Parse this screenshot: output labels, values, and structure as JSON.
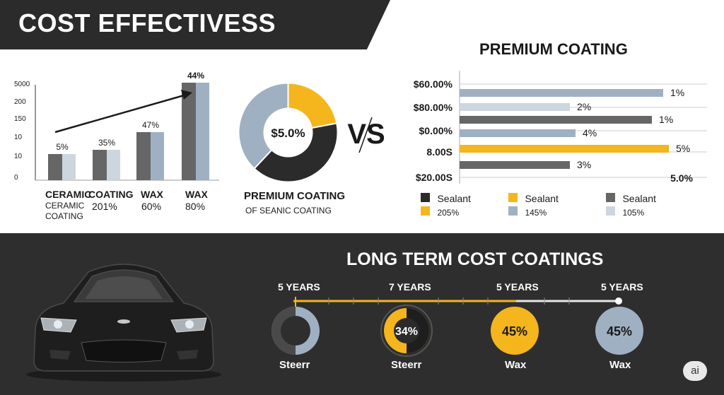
{
  "title": "COST EFFECTIVESS",
  "colors": {
    "dark": "#2b2b2b",
    "gold": "#f5b51c",
    "bluegrey": "#9fb0c3",
    "grey": "#666666",
    "light": "#cdd6df"
  },
  "left_chart": {
    "y_ticks": [
      "5000",
      "200",
      "150",
      "10",
      "10",
      "0"
    ],
    "bar_pct_labels": [
      "5%",
      "35%",
      "47%",
      "44%"
    ],
    "category_labels": [
      "CERAMIC",
      "COATING",
      "WAX",
      "WAX"
    ],
    "sub_labels": [
      [
        "CERAMIC",
        "COATING"
      ],
      [
        "201%"
      ],
      [
        "60%"
      ],
      [
        "80%"
      ]
    ]
  },
  "donut": {
    "center_label": "$5.0%",
    "caption_line1": "PREMIUM COATING",
    "caption_line2": "OF SEANIC COATING"
  },
  "vs_label": "VS",
  "hbar_chart": {
    "title": "PREMIUM COATING",
    "row_labels": [
      "$60.00%",
      "$80.00%",
      "$0.00%",
      "8.00S",
      "$20.00S"
    ],
    "value_labels": [
      "1%",
      "2%",
      "1%",
      "4%",
      "5%",
      "3%",
      "5.0%"
    ]
  },
  "legend": [
    {
      "label": "Sealant",
      "value": "205%",
      "color": "#2b2b2b",
      "value_color": "#f5b51c"
    },
    {
      "label": "Sealant",
      "value": "145%",
      "color": "#f5b51c",
      "value_color": "#9fb0c3"
    },
    {
      "label": "Sealant",
      "value": "105%",
      "color": "#666666",
      "value_color": "#cdd6df"
    }
  ],
  "timeline": {
    "title": "LONG TERM COST COATINGS",
    "items": [
      {
        "years": "5 YEARS",
        "name": "Steerr",
        "value_label": ""
      },
      {
        "years": "7 YEARS",
        "name": "Steerr",
        "value_label": "34%"
      },
      {
        "years": "5 YEARS",
        "name": "Wax",
        "value_label": "45%"
      },
      {
        "years": "5 YEARS",
        "name": "Wax",
        "value_label": "45%"
      }
    ]
  },
  "badge": "ai",
  "chart_data": [
    {
      "type": "bar",
      "title": "",
      "categories": [
        "CERAMIC COATING",
        "COATING",
        "WAX",
        "WAX"
      ],
      "series": [
        {
          "values": [
            5,
            35,
            47,
            44
          ]
        }
      ],
      "y_tick_labels": [
        "0",
        "10",
        "10",
        "150",
        "200",
        "5000"
      ],
      "trend_arrow": true
    },
    {
      "type": "pie",
      "center_label": "$5.0%",
      "slices": [
        {
          "color": "#f5b51c",
          "value": 22
        },
        {
          "color": "#2b2b2b",
          "value": 40
        },
        {
          "color": "#9fb0c3",
          "value": 38
        }
      ]
    },
    {
      "type": "bar",
      "orientation": "horizontal",
      "title": "PREMIUM COATING",
      "bars": [
        {
          "value": 1,
          "label": "1%",
          "color": "#9fb0c3",
          "length": 0.72
        },
        {
          "value": 2,
          "label": "2%",
          "color": "#cdd6df",
          "length": 0.39
        },
        {
          "value": 1,
          "label": "1%",
          "color": "#666666",
          "length": 0.68
        },
        {
          "value": 4,
          "label": "4%",
          "color": "#9fb0c3",
          "length": 0.41
        },
        {
          "value": 5,
          "label": "5%",
          "color": "#f5b51c",
          "length": 0.74
        },
        {
          "value": 3,
          "label": "3%",
          "color": "#666666",
          "length": 0.39
        }
      ],
      "end_label": "5.0%"
    }
  ]
}
